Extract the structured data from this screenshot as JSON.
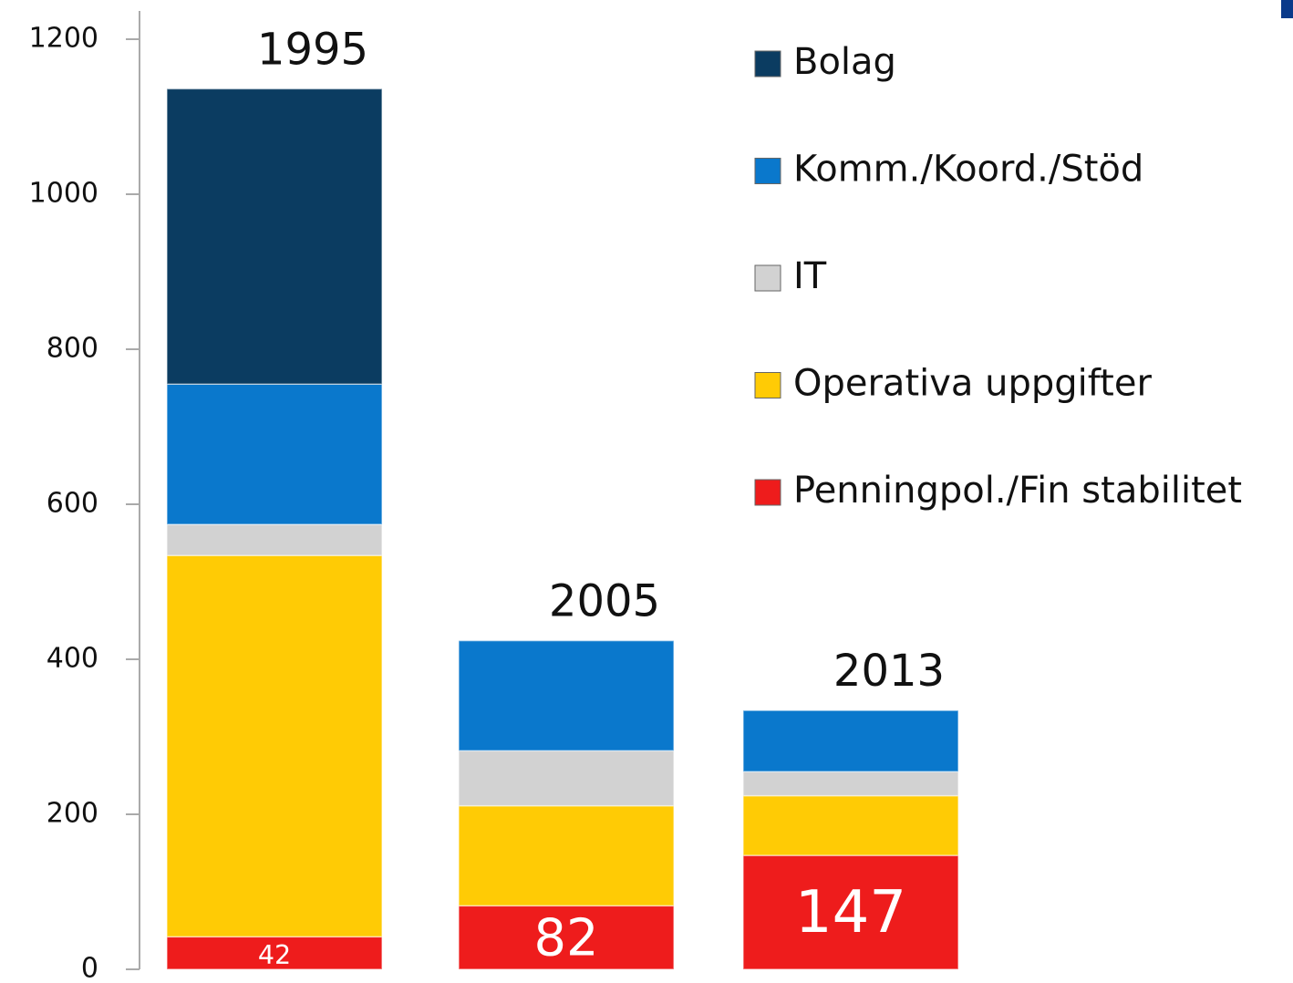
{
  "chart_data": {
    "type": "stacked-bar",
    "categories": [
      "1995",
      "2005",
      "2013"
    ],
    "series": [
      {
        "name": "Bolag",
        "color": "#0b3c61",
        "values": [
          381,
          0,
          0
        ]
      },
      {
        "name": "Komm./Koord./Stöd",
        "color": "#0a78cc",
        "values": [
          181,
          142,
          79
        ]
      },
      {
        "name": "IT",
        "color": "#d2d2d2",
        "values": [
          40,
          71,
          31
        ]
      },
      {
        "name": "Operativa uppgifter",
        "color": "#ffcb05",
        "values": [
          492,
          129,
          77
        ]
      },
      {
        "name": "Penningpol./Fin stabilitet",
        "color": "#ee1c1c",
        "values": [
          42,
          82,
          147
        ]
      }
    ],
    "ylim": [
      0,
      1200
    ],
    "yticks": [
      0,
      200,
      400,
      600,
      800,
      1000,
      1200
    ]
  }
}
